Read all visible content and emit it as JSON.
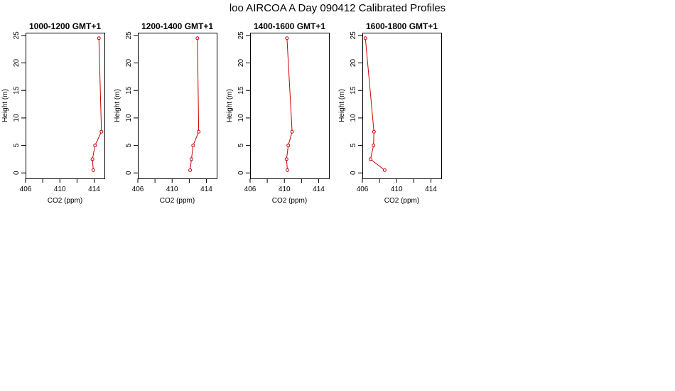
{
  "page": {
    "title": "loo AIRCOA A  Day 090412  Calibrated Profiles"
  },
  "colors": {
    "line": "#cc0000",
    "axis": "#000000",
    "background": "#ffffff"
  },
  "chart_data": [
    {
      "type": "line",
      "title": "1000-1200 GMT+1",
      "xlabel": "CO2 (ppm)",
      "ylabel": "Height (m)",
      "xlim": [
        406,
        415.2
      ],
      "ylim": [
        -1,
        25.5
      ],
      "xticks": [
        406,
        408,
        410,
        412,
        414
      ],
      "xticklabels": [
        "406",
        "",
        "410",
        "",
        "414"
      ],
      "yticks": [
        0,
        5,
        10,
        15,
        20,
        25
      ],
      "yticklabels": [
        "0",
        "5",
        "10",
        "15",
        "20",
        "25"
      ],
      "grid": false,
      "series": [
        {
          "x": [
            413.9,
            413.8,
            414.1,
            414.85,
            414.55
          ],
          "y": [
            0.5,
            2.5,
            5,
            7.5,
            24.5
          ]
        }
      ]
    },
    {
      "type": "line",
      "title": "1200-1400 GMT+1",
      "xlabel": "CO2 (ppm)",
      "ylabel": "Height (m)",
      "xlim": [
        406,
        415.2
      ],
      "ylim": [
        -1,
        25.5
      ],
      "xticks": [
        406,
        408,
        410,
        412,
        414
      ],
      "xticklabels": [
        "406",
        "",
        "410",
        "",
        "414"
      ],
      "yticks": [
        0,
        5,
        10,
        15,
        20,
        25
      ],
      "yticklabels": [
        "0",
        "5",
        "10",
        "15",
        "20",
        "25"
      ],
      "grid": false,
      "series": [
        {
          "x": [
            412.1,
            412.25,
            412.45,
            413.1,
            412.95
          ],
          "y": [
            0.5,
            2.5,
            5,
            7.5,
            24.5
          ]
        }
      ]
    },
    {
      "type": "line",
      "title": "1400-1600 GMT+1",
      "xlabel": "CO2 (ppm)",
      "ylabel": "Height (m)",
      "xlim": [
        406,
        415.2
      ],
      "ylim": [
        -1,
        25.5
      ],
      "xticks": [
        406,
        408,
        410,
        412,
        414
      ],
      "xticklabels": [
        "406",
        "",
        "410",
        "",
        "414"
      ],
      "yticks": [
        0,
        5,
        10,
        15,
        20,
        25
      ],
      "yticklabels": [
        "0",
        "5",
        "10",
        "15",
        "20",
        "25"
      ],
      "grid": false,
      "series": [
        {
          "x": [
            410.35,
            410.25,
            410.45,
            410.9,
            410.3
          ],
          "y": [
            0.5,
            2.5,
            5,
            7.5,
            24.5
          ]
        }
      ]
    },
    {
      "type": "line",
      "title": "1600-1800 GMT+1",
      "xlabel": "CO2 (ppm)",
      "ylabel": "Height (m)",
      "xlim": [
        406,
        415.2
      ],
      "ylim": [
        -1,
        25.5
      ],
      "xticks": [
        406,
        408,
        410,
        412,
        414
      ],
      "xticklabels": [
        "406",
        "",
        "410",
        "",
        "414"
      ],
      "yticks": [
        0,
        5,
        10,
        15,
        20,
        25
      ],
      "yticklabels": [
        "0",
        "5",
        "10",
        "15",
        "20",
        "25"
      ],
      "grid": false,
      "series": [
        {
          "x": [
            408.6,
            406.95,
            407.3,
            407.35,
            406.35
          ],
          "y": [
            0.5,
            2.5,
            5,
            7.5,
            24.5
          ]
        }
      ]
    }
  ]
}
